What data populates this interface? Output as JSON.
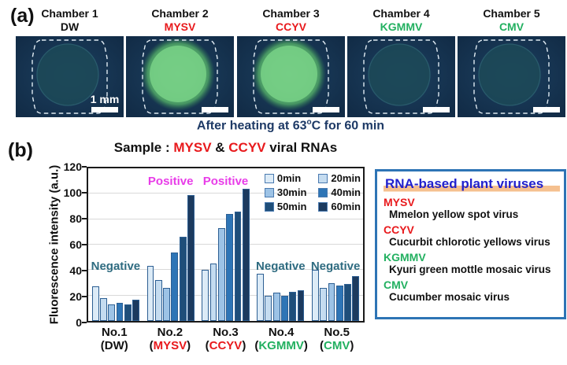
{
  "panel_a": {
    "label": "(a)",
    "caption": "After heating at 63°C for 60 min",
    "caption_parts": [
      {
        "text": "After heating at 63"
      },
      {
        "text": "o",
        "sup": true
      },
      {
        "text": "C for 60 min"
      }
    ],
    "scale_label": "1 mm",
    "colors": {
      "image_bg": "#132f4b",
      "outline": "#dfeaf2",
      "caption": "#1e3a66"
    },
    "chambers": [
      {
        "title": "Chamber 1",
        "subtitle": "DW",
        "subtitle_color": "#111111",
        "state": "dark",
        "show_scale_label": true
      },
      {
        "title": "Chamber 2",
        "subtitle": "MYSV",
        "subtitle_color": "#e8191c",
        "state": "bright",
        "show_scale_label": false
      },
      {
        "title": "Chamber 3",
        "subtitle": "CCYV",
        "subtitle_color": "#e8191c",
        "state": "bright",
        "show_scale_label": false
      },
      {
        "title": "Chamber 4",
        "subtitle": "KGMMV",
        "subtitle_color": "#22b060",
        "state": "dark",
        "show_scale_label": false
      },
      {
        "title": "Chamber 5",
        "subtitle": "CMV",
        "subtitle_color": "#22b060",
        "state": "dark",
        "show_scale_label": false
      }
    ]
  },
  "panel_b": {
    "label": "(b)",
    "title_parts": [
      {
        "text": "Sample : ",
        "color": "#111111"
      },
      {
        "text": "MYSV",
        "color": "#e8191c"
      },
      {
        "text": " & ",
        "color": "#111111"
      },
      {
        "text": "CCYV",
        "color": "#e8191c"
      },
      {
        "text": " viral RNAs",
        "color": "#111111"
      }
    ]
  },
  "chart_data": {
    "type": "bar",
    "title": "Sample : MYSV & CCYV viral RNAs",
    "xlabel": "",
    "ylabel": "Fluorescence intensity (a.u.)",
    "ylim": [
      0,
      120
    ],
    "yticks": [
      0,
      20,
      40,
      60,
      80,
      100,
      120
    ],
    "grid": true,
    "legend_position": "top-right",
    "categories": [
      "No.1",
      "No.2",
      "No.3",
      "No.4",
      "No.5"
    ],
    "category_sublabels": [
      {
        "name": "DW",
        "color": "#111111"
      },
      {
        "name": "MYSV",
        "color": "#e8191c"
      },
      {
        "name": "CCYV",
        "color": "#e8191c"
      },
      {
        "name": "KGMMV",
        "color": "#22b060"
      },
      {
        "name": "CMV",
        "color": "#22b060"
      }
    ],
    "series": [
      {
        "name": "0min",
        "color": "#dcebf7",
        "values": [
          27,
          43,
          40,
          37,
          40
        ]
      },
      {
        "name": "20min",
        "color": "#c5dcf0",
        "values": [
          18,
          32,
          45,
          20,
          26
        ]
      },
      {
        "name": "30min",
        "color": "#9dc3e6",
        "values": [
          13,
          26,
          73,
          22,
          30
        ]
      },
      {
        "name": "40min",
        "color": "#2e75b6",
        "values": [
          14,
          54,
          84,
          20,
          28
        ]
      },
      {
        "name": "50min",
        "color": "#1f4e79",
        "values": [
          13,
          66,
          86,
          23,
          29
        ]
      },
      {
        "name": "60min",
        "color": "#1c3a5e",
        "values": [
          17,
          99,
          104,
          24,
          35
        ]
      }
    ],
    "annotations": [
      {
        "text": "Negative",
        "group": 0,
        "color": "#2e6b80",
        "position": "low"
      },
      {
        "text": "Positive",
        "group": 1,
        "color": "#e83ce8",
        "position": "high"
      },
      {
        "text": "Positive",
        "group": 2,
        "color": "#e83ce8",
        "position": "high"
      },
      {
        "text": "Negative",
        "group": 3,
        "color": "#2e6b80",
        "position": "low"
      },
      {
        "text": "Negative",
        "group": 4,
        "color": "#2e6b80",
        "position": "low"
      }
    ]
  },
  "virus_box": {
    "title": "RNA-based plant viruses",
    "title_color": "#2121cd",
    "highlight_color": "#f5c08f",
    "border_color": "#2e74b5",
    "entries": [
      {
        "abbr": "MYSV",
        "abbr_color": "#e8191c",
        "name": "Mmelon yellow spot virus"
      },
      {
        "abbr": "CCYV",
        "abbr_color": "#e8191c",
        "name": "Cucurbit chlorotic yellows virus"
      },
      {
        "abbr": "KGMMV",
        "abbr_color": "#22b060",
        "name": "Kyuri green mottle mosaic virus"
      },
      {
        "abbr": "CMV",
        "abbr_color": "#22b060",
        "name": "Cucumber mosaic virus"
      }
    ]
  }
}
